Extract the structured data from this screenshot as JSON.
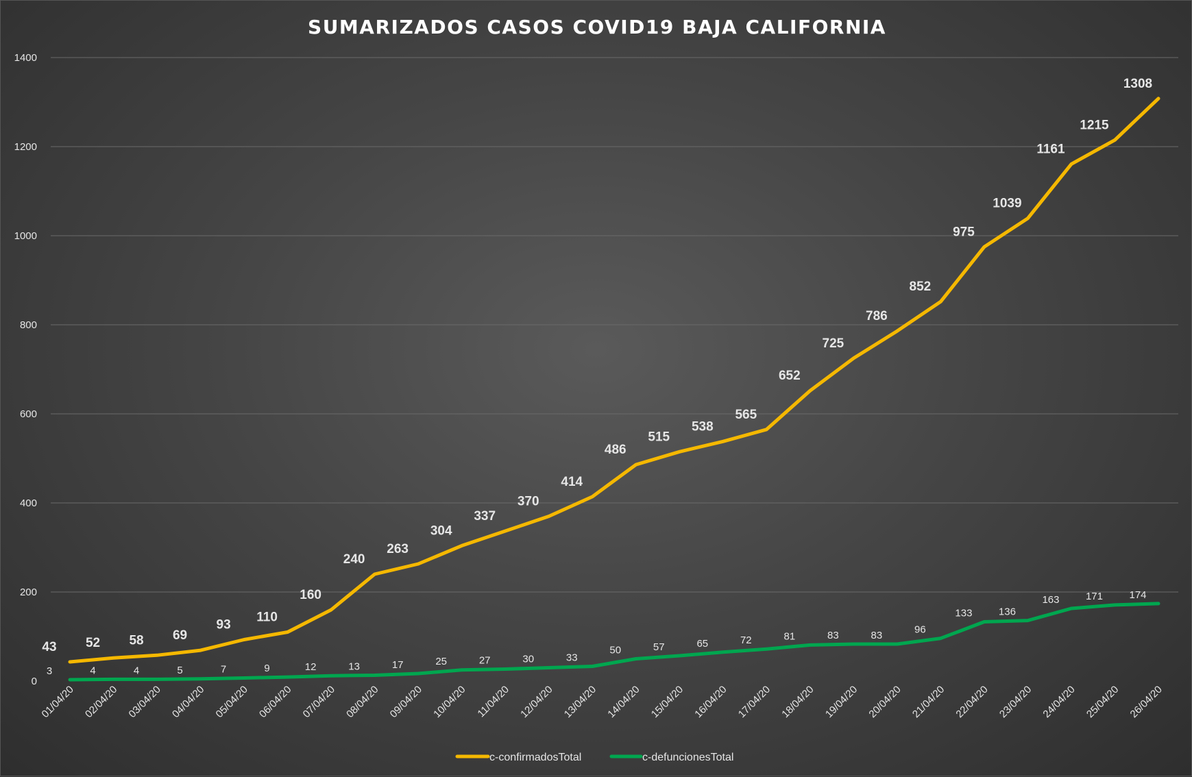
{
  "chart_data": {
    "type": "line",
    "title": "SUMARIZADOS CASOS COVID19 BAJA CALIFORNIA",
    "xlabel": "",
    "ylabel": "",
    "ylim": [
      0,
      1400
    ],
    "yticks": [
      "0",
      "200",
      "400",
      "600",
      "800",
      "1000",
      "1200",
      "1400"
    ],
    "grid": true,
    "legend_position": "bottom",
    "categories": [
      "01/04/20",
      "02/04/20",
      "03/04/20",
      "04/04/20",
      "05/04/20",
      "06/04/20",
      "07/04/20",
      "08/04/20",
      "09/04/20",
      "10/04/20",
      "11/04/20",
      "12/04/20",
      "13/04/20",
      "14/04/20",
      "15/04/20",
      "16/04/20",
      "17/04/20",
      "18/04/20",
      "19/04/20",
      "20/04/20",
      "21/04/20",
      "22/04/20",
      "23/04/20",
      "24/04/20",
      "25/04/20",
      "26/04/20"
    ],
    "series": [
      {
        "name": "c-confirmadosTotal",
        "color": "#f5b800",
        "values": [
          43,
          52,
          58,
          69,
          93,
          110,
          160,
          240,
          263,
          304,
          337,
          370,
          414,
          486,
          515,
          538,
          565,
          652,
          725,
          786,
          852,
          975,
          1039,
          1161,
          1215,
          1308
        ]
      },
      {
        "name": "c-defuncionesTotal",
        "color": "#00a64f",
        "values": [
          3,
          4,
          4,
          5,
          7,
          9,
          12,
          13,
          17,
          25,
          27,
          30,
          33,
          50,
          57,
          65,
          72,
          81,
          83,
          83,
          96,
          133,
          136,
          163,
          171,
          174
        ]
      }
    ]
  }
}
